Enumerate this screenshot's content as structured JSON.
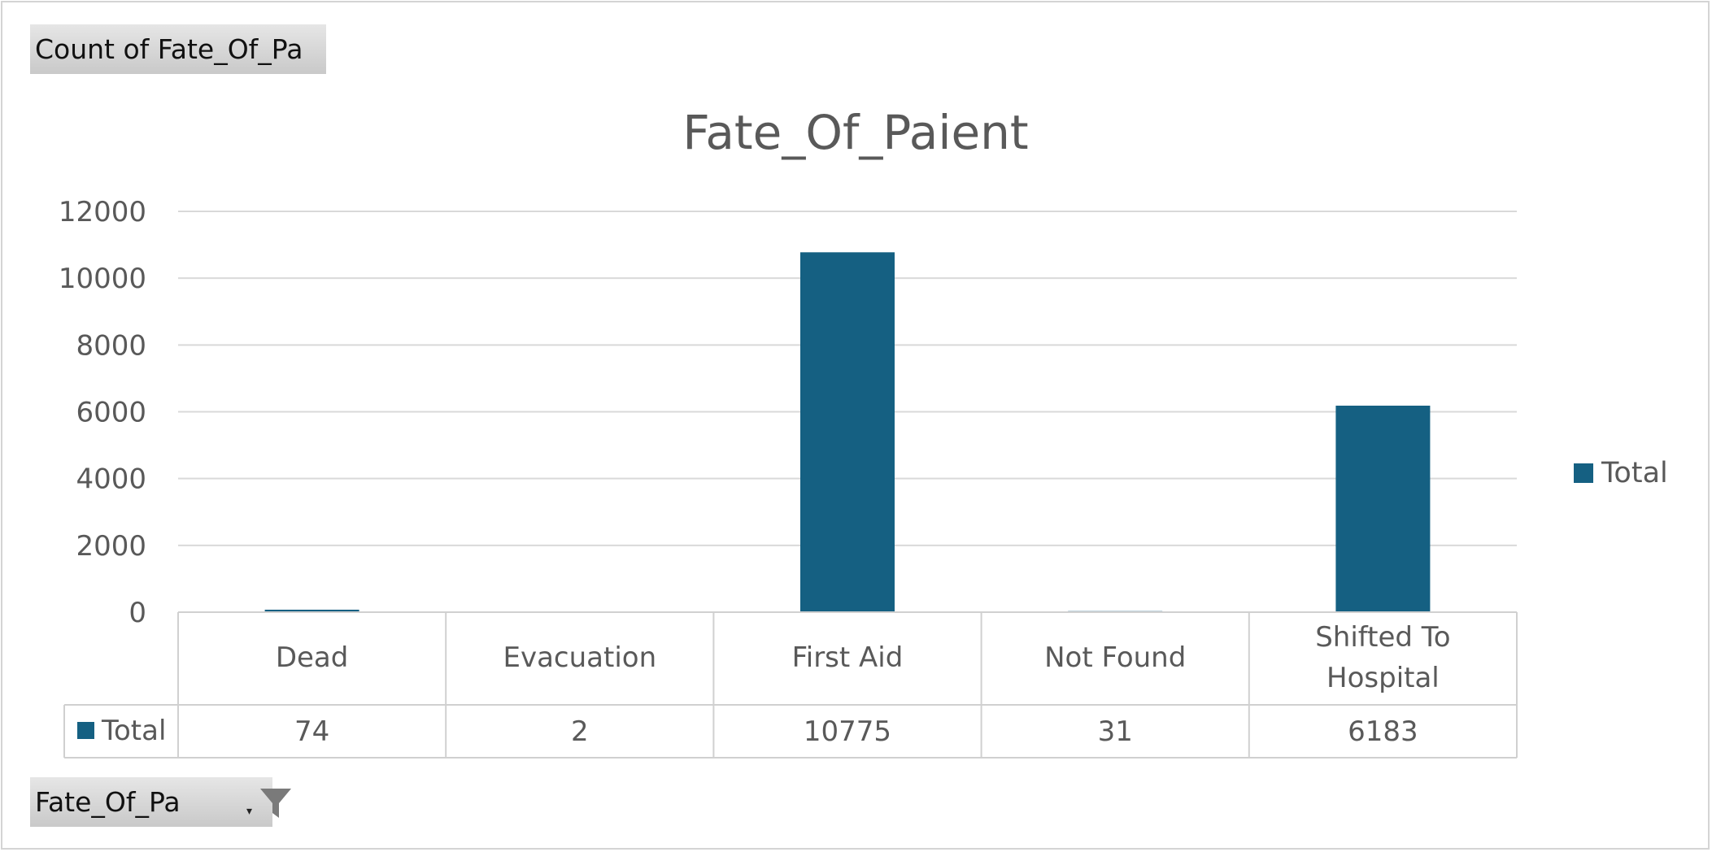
{
  "pivot": {
    "value_field_label": "Count of Fate_Of_Pa",
    "axis_field_label": "Fate_Of_Pa",
    "filter_icon": "funnel-icon",
    "dropdown_icon": "dropdown-arrow-icon"
  },
  "colors": {
    "series": "#156082",
    "grid": "#d9d9d9",
    "text": "#595959"
  },
  "chart_data": {
    "type": "bar",
    "title": "Fate_Of_Paient",
    "categories": [
      "Dead",
      "Evacuation",
      "First Aid",
      "Not Found",
      "Shifted To Hospital"
    ],
    "series": [
      {
        "name": "Total",
        "values": [
          74,
          2,
          10775,
          31,
          6183
        ]
      }
    ],
    "ylim": [
      0,
      12000
    ],
    "yticks": [
      0,
      2000,
      4000,
      6000,
      8000,
      10000,
      12000
    ],
    "grid": true,
    "legend": "right",
    "data_table": true
  }
}
